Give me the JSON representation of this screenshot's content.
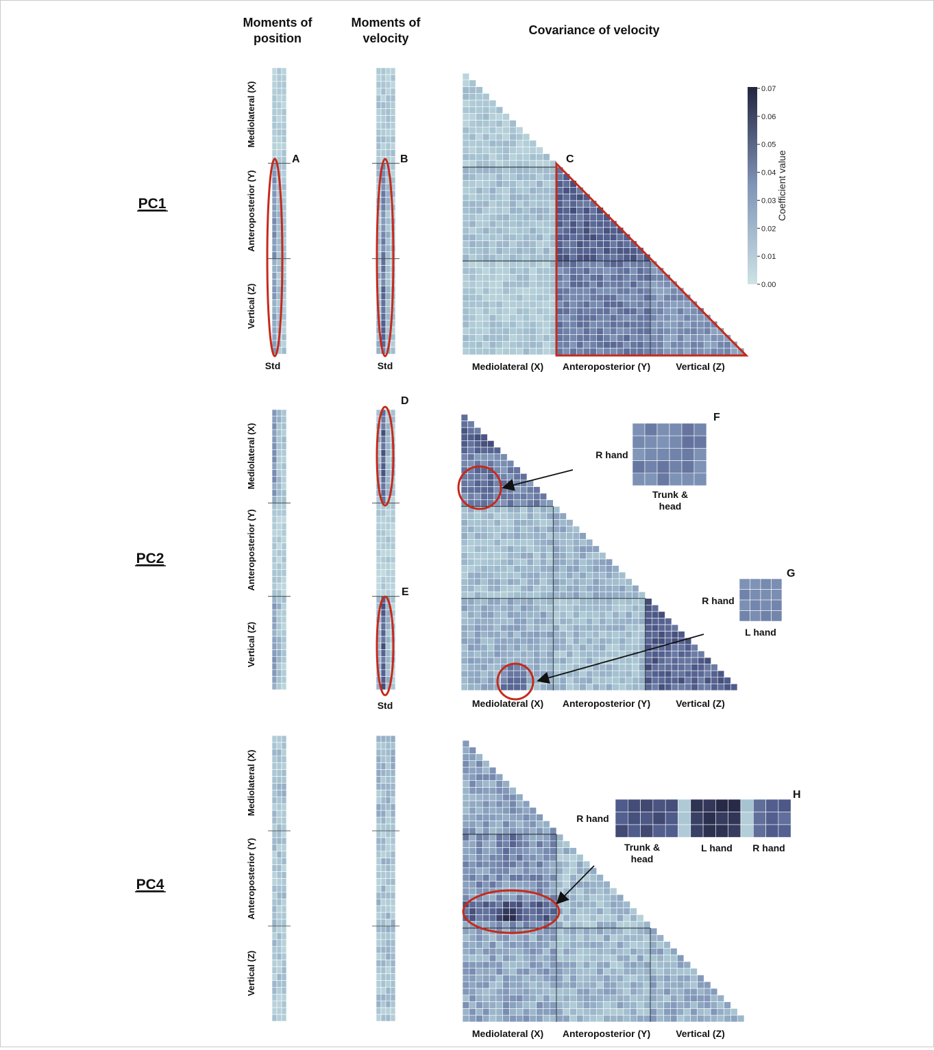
{
  "figure": {
    "column_headers": [
      "Moments of position",
      "Moments of velocity",
      "Covariance of velocity"
    ],
    "colorbar": {
      "label": "Coefficient value",
      "ticks": [
        "0.00",
        "0.01",
        "0.02",
        "0.03",
        "0.04",
        "0.05",
        "0.06",
        "0.07"
      ],
      "range": [
        0,
        0.07
      ],
      "color_low": "#cde3e5",
      "color_high": "#23253f"
    },
    "highlight_color": "#c62a1b"
  },
  "chart_data": [
    {
      "type": "heatmap",
      "title": "PC1",
      "panels": {
        "position_moments": {
          "row_groups": [
            "Mediolateral (X)",
            "Anteroposterior (Y)",
            "Vertical (Z)"
          ],
          "xlabel": "Std",
          "callout": "A",
          "level": "low in X, medium in Y and Z"
        },
        "velocity_moments": {
          "row_groups": [
            "Mediolateral (X)",
            "Anteroposterior (Y)",
            "Vertical (Z)"
          ],
          "xlabel": "Std",
          "callout": "B",
          "level": "low in X, medium-high in Y and Z"
        },
        "velocity_covariance": {
          "axis_groups": [
            "Mediolateral (X)",
            "Anteroposterior (Y)",
            "Vertical (Z)"
          ],
          "callout": "C",
          "block_levels": {
            "XX": 0.015,
            "YX": 0.018,
            "ZX": 0.015,
            "YY": 0.05,
            "ZY": 0.042,
            "ZZ": 0.035
          }
        }
      },
      "insets": []
    },
    {
      "type": "heatmap",
      "title": "PC2",
      "panels": {
        "position_moments": {
          "row_groups": [
            "Mediolateral (X)",
            "Anteroposterior (Y)",
            "Vertical (Z)"
          ],
          "xlabel": "",
          "callout": "",
          "level": "medium in X and Z, low in Y"
        },
        "velocity_moments": {
          "row_groups": [
            "Mediolateral (X)",
            "Anteroposterior (Y)",
            "Vertical (Z)"
          ],
          "xlabel": "Std",
          "callouts": [
            "D",
            "E"
          ],
          "level": "high in X and Z, low in Y"
        },
        "velocity_covariance": {
          "axis_groups": [
            "Mediolateral (X)",
            "Anteroposterior (Y)",
            "Vertical (Z)"
          ],
          "callout": "",
          "block_levels": {
            "XX": 0.04,
            "YX": 0.02,
            "ZX": 0.025,
            "YY": 0.025,
            "ZY": 0.02,
            "ZZ": 0.05
          }
        }
      },
      "insets": [
        {
          "label": "F",
          "row_label": "R hand",
          "col_label": "Trunk & head",
          "rows": 5,
          "cols": 6,
          "level": 0.04
        },
        {
          "label": "G",
          "row_label": "R hand",
          "col_label": "L hand",
          "rows": 4,
          "cols": 4,
          "level": 0.04
        }
      ]
    },
    {
      "type": "heatmap",
      "title": "PC4",
      "panels": {
        "position_moments": {
          "row_groups": [
            "Mediolateral (X)",
            "Anteroposterior (Y)",
            "Vertical (Z)"
          ],
          "xlabel": "",
          "callout": "",
          "level": "low-medium"
        },
        "velocity_moments": {
          "row_groups": [
            "",
            "",
            ""
          ],
          "xlabel": "",
          "callout": "",
          "level": "low-medium"
        },
        "velocity_covariance": {
          "axis_groups": [
            "Mediolateral (X)",
            "Anteroposterior (Y)",
            "Vertical (Z)"
          ],
          "callout": "",
          "block_levels": {
            "XX": 0.03,
            "YX": 0.035,
            "ZX": 0.028,
            "YY": 0.02,
            "ZY": 0.022,
            "ZZ": 0.025
          }
        }
      },
      "insets": [
        {
          "label": "H",
          "row_label": "R hand",
          "col_labels": [
            "Trunk & head",
            "L hand",
            "R hand"
          ],
          "rows": 3,
          "cols": 14,
          "level": 0.055
        }
      ]
    }
  ]
}
